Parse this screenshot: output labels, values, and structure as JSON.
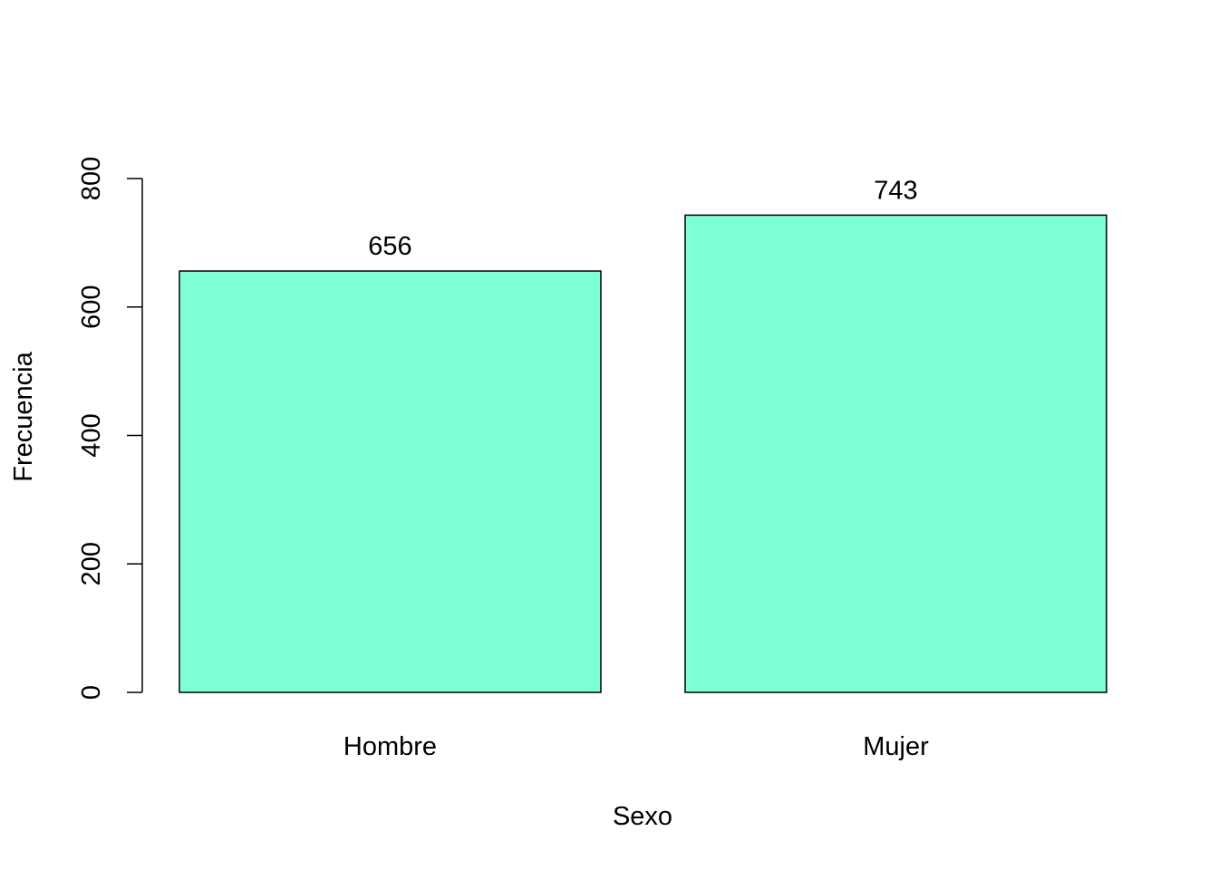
{
  "chart_data": {
    "type": "bar",
    "title": "",
    "xlabel": "Sexo",
    "ylabel": "Frecuencia",
    "categories": [
      "Hombre",
      "Mujer"
    ],
    "values": [
      656,
      743
    ],
    "data_labels": [
      "656",
      "743"
    ],
    "ylim": [
      0,
      800
    ],
    "yticks": [
      0,
      200,
      400,
      600,
      800
    ],
    "ytick_labels": [
      "0",
      "200",
      "400",
      "600",
      "800"
    ],
    "grid": false,
    "legend": "none",
    "bar_color": "#7FFFD4",
    "bar_border_color": "#000000"
  }
}
